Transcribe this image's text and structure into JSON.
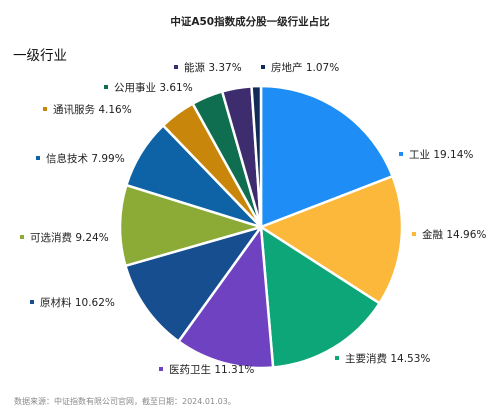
{
  "chart_data": {
    "type": "pie",
    "title": "中证A50指数成分股一级行业占比",
    "legend_title": "一级行业",
    "categories": [
      "工业",
      "金融",
      "主要消费",
      "医药卫生",
      "原材料",
      "可选消费",
      "信息技术",
      "通讯服务",
      "公用事业",
      "能源",
      "房地产"
    ],
    "labels": [
      "工业 19.14%",
      "金融 14.96%",
      "主要消费 14.53%",
      "医药卫生 11.31%",
      "原材料 10.62%",
      "可选消费 9.24%",
      "信息技术 7.99%",
      "通讯服务 4.16%",
      "公用事业 3.61%",
      "能源 3.37%",
      "房地产 1.07%"
    ],
    "values": [
      19.14,
      14.96,
      14.53,
      11.31,
      10.62,
      9.24,
      7.99,
      4.16,
      3.61,
      3.37,
      1.07
    ],
    "colors": [
      "#1E8DF5",
      "#FBB83A",
      "#0CA678",
      "#6F42C1",
      "#164E8F",
      "#8BAA36",
      "#0D63A5",
      "#C8860A",
      "#0F6E4F",
      "#3D2D6E",
      "#0F2C57"
    ],
    "source": "数据来源：中证指数有限公司官网，截至日期：2024.01.03。"
  }
}
